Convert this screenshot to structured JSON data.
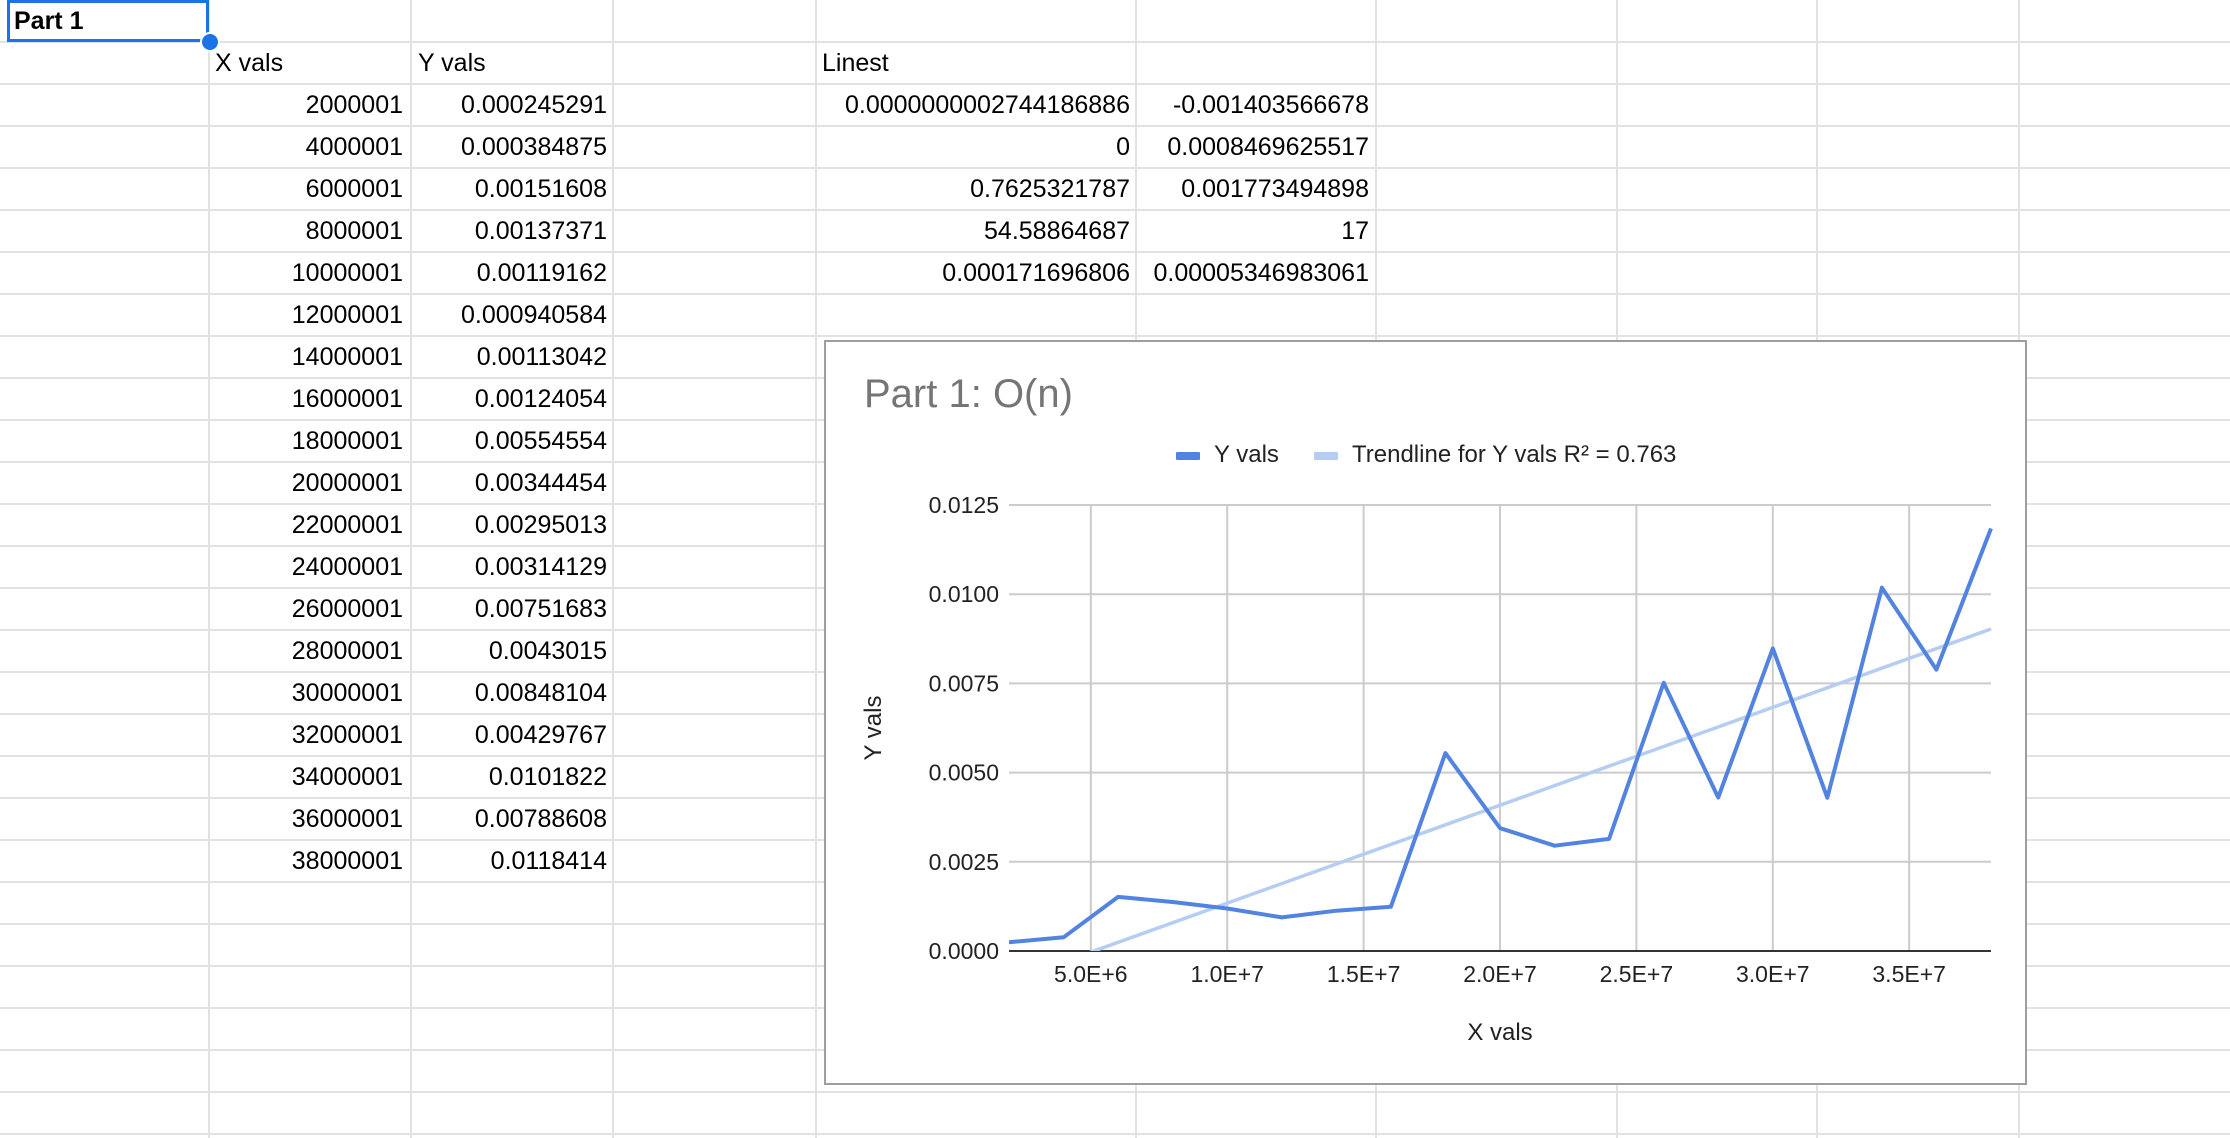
{
  "sheet": {
    "a1": "Part 1",
    "x_header": "X vals",
    "y_header": "Y vals",
    "linest_header": "Linest",
    "rows": [
      {
        "x": "2000001",
        "y": "0.000245291"
      },
      {
        "x": "4000001",
        "y": "0.000384875"
      },
      {
        "x": "6000001",
        "y": "0.00151608"
      },
      {
        "x": "8000001",
        "y": "0.00137371"
      },
      {
        "x": "10000001",
        "y": "0.00119162"
      },
      {
        "x": "12000001",
        "y": "0.000940584"
      },
      {
        "x": "14000001",
        "y": "0.00113042"
      },
      {
        "x": "16000001",
        "y": "0.00124054"
      },
      {
        "x": "18000001",
        "y": "0.00554554"
      },
      {
        "x": "20000001",
        "y": "0.00344454"
      },
      {
        "x": "22000001",
        "y": "0.00295013"
      },
      {
        "x": "24000001",
        "y": "0.00314129"
      },
      {
        "x": "26000001",
        "y": "0.00751683"
      },
      {
        "x": "28000001",
        "y": "0.0043015"
      },
      {
        "x": "30000001",
        "y": "0.00848104"
      },
      {
        "x": "32000001",
        "y": "0.00429767"
      },
      {
        "x": "34000001",
        "y": "0.0101822"
      },
      {
        "x": "36000001",
        "y": "0.00788608"
      },
      {
        "x": "38000001",
        "y": "0.0118414"
      }
    ],
    "linest": [
      [
        "0.0000000002744186886",
        "-0.001403566678"
      ],
      [
        "0",
        "0.0008469625517"
      ],
      [
        "0.7625321787",
        "0.001773494898"
      ],
      [
        "54.58864687",
        "17"
      ],
      [
        "0.000171696806",
        "0.00005346983061"
      ]
    ]
  },
  "chart_data": {
    "type": "line",
    "title": "Part 1: O(n)",
    "xlabel": "X vals",
    "ylabel": "Y vals",
    "legend": [
      "Y vals",
      "Trendline for Y vals R² = 0.763"
    ],
    "legend_position": "top",
    "grid": true,
    "xlim": [
      2000001,
      38000001
    ],
    "ylim": [
      0,
      0.0125
    ],
    "x_ticks": [
      5000000,
      10000000,
      15000000,
      20000000,
      25000000,
      30000000,
      35000000
    ],
    "x_tick_labels": [
      "5.0E+6",
      "1.0E+7",
      "1.5E+7",
      "2.0E+7",
      "2.5E+7",
      "3.0E+7",
      "3.5E+7"
    ],
    "y_ticks": [
      0,
      0.0025,
      0.005,
      0.0075,
      0.01,
      0.0125
    ],
    "y_tick_labels": [
      "0.0000",
      "0.0025",
      "0.0050",
      "0.0075",
      "0.0100",
      "0.0125"
    ],
    "series": [
      {
        "name": "Y vals",
        "color": "#5383e0",
        "x": [
          2000001,
          4000001,
          6000001,
          8000001,
          10000001,
          12000001,
          14000001,
          16000001,
          18000001,
          20000001,
          22000001,
          24000001,
          26000001,
          28000001,
          30000001,
          32000001,
          34000001,
          36000001,
          38000001
        ],
        "y": [
          0.000245291,
          0.000384875,
          0.00151608,
          0.00137371,
          0.00119162,
          0.000940584,
          0.00113042,
          0.00124054,
          0.00554554,
          0.00344454,
          0.00295013,
          0.00314129,
          0.00751683,
          0.0043015,
          0.00848104,
          0.00429767,
          0.0101822,
          0.00788608,
          0.0118414
        ]
      },
      {
        "name": "Trendline for Y vals R² = 0.763",
        "color": "#b5cdf3",
        "type": "linear_trendline",
        "slope": 2.744186886e-10,
        "intercept": -0.001403566678
      }
    ]
  }
}
